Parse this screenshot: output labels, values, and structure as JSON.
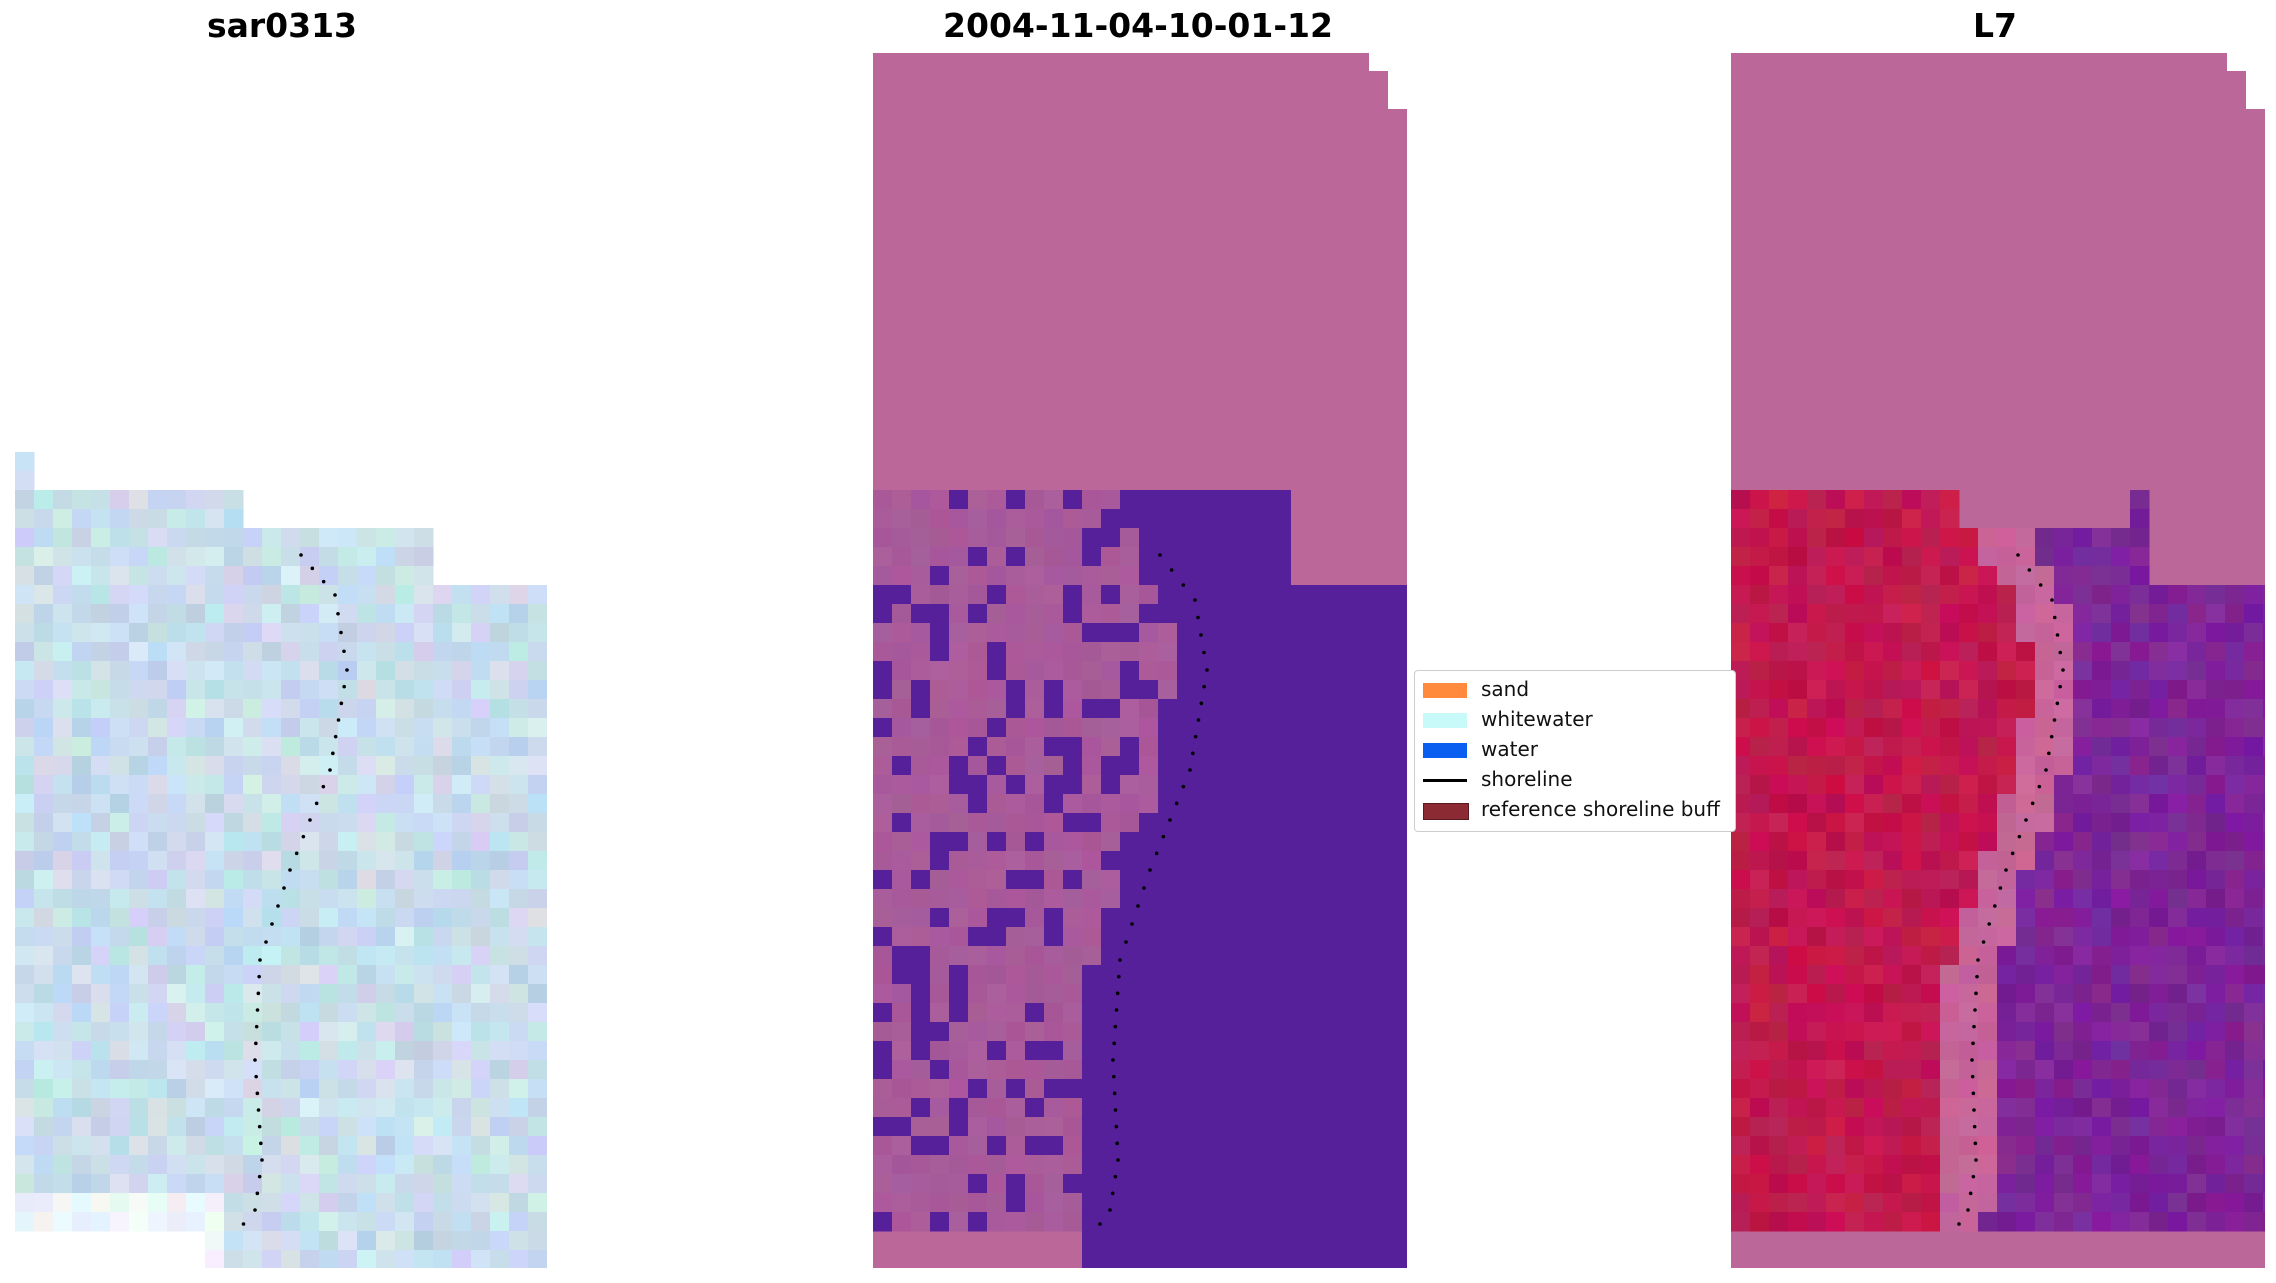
{
  "figure": {
    "titles": [
      "sar0313",
      "2004-11-04-10-01-12",
      "L7"
    ]
  },
  "legend": {
    "items": [
      {
        "label": "sand",
        "kind": "patch",
        "color": "#ff8a3d"
      },
      {
        "label": "whitewater",
        "kind": "patch",
        "color": "#c8fafa"
      },
      {
        "label": "water",
        "kind": "patch",
        "color": "#0a5ff0"
      },
      {
        "label": "shoreline",
        "kind": "line",
        "color": "#000000"
      },
      {
        "label": "reference shoreline buff",
        "kind": "patch",
        "color": "#8b2a32"
      }
    ]
  },
  "colors": {
    "sar_base": "#c5dced",
    "sar_white": "#eef6fb",
    "class_pink": "#bc6799",
    "class_land": "#a95b9a",
    "class_water": "#55209a",
    "l7_land": "#c2184e",
    "l7_water": "#7d2597",
    "l7_buffer": "#c8659a",
    "shoreline_dots": "#000000"
  }
}
